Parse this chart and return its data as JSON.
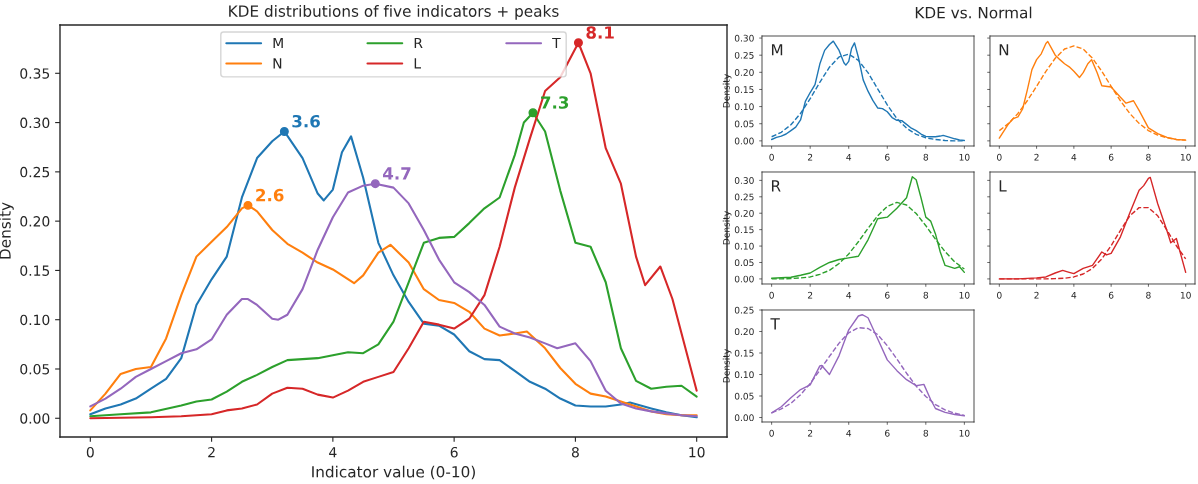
{
  "chart_data": [
    {
      "type": "line",
      "title": "KDE distributions of five indicators + peaks",
      "xlabel": "Indicator value (0-10)",
      "ylabel": "Density",
      "xlim": [
        -0.5,
        10.5
      ],
      "ylim": [
        -0.019,
        0.399
      ],
      "xticks": [
        0,
        2,
        4,
        6,
        8,
        10
      ],
      "yticks": [
        {
          "value": 0,
          "label": "0.00"
        },
        0.05,
        {
          "value": 0.1,
          "label": "0.10"
        },
        0.15,
        {
          "value": 0.2,
          "label": "0.20"
        },
        0.25,
        {
          "value": 0.3,
          "label": "0.30"
        },
        0.35
      ],
      "legend": "top",
      "series": [
        {
          "name": "M",
          "color": "#1f77b4",
          "line_style": "solid",
          "x": [
            0,
            0.25,
            0.5,
            0.75,
            1,
            1.25,
            1.5,
            1.75,
            2,
            2.25,
            2.5,
            2.75,
            3,
            3.2,
            3.5,
            3.75,
            3.85,
            4,
            4.15,
            4.3,
            4.5,
            4.75,
            5,
            5.25,
            5.5,
            5.75,
            6,
            6.25,
            6.5,
            6.75,
            7,
            7.25,
            7.5,
            7.75,
            8,
            8.25,
            8.5,
            8.75,
            8.9,
            9.25,
            9.5,
            9.75,
            10
          ],
          "values": [
            0.004,
            0.01,
            0.014,
            0.02,
            0.03,
            0.04,
            0.061,
            0.115,
            0.141,
            0.164,
            0.224,
            0.264,
            0.281,
            0.291,
            0.264,
            0.228,
            0.221,
            0.232,
            0.27,
            0.286,
            0.244,
            0.178,
            0.145,
            0.118,
            0.096,
            0.094,
            0.085,
            0.068,
            0.06,
            0.059,
            0.048,
            0.037,
            0.03,
            0.02,
            0.013,
            0.012,
            0.012,
            0.014,
            0.016,
            0.01,
            0.006,
            0.003,
            0.001
          ]
        },
        {
          "name": "N",
          "color": "#ff7f0e",
          "line_style": "solid",
          "x": [
            0,
            0.25,
            0.5,
            0.75,
            1,
            1.25,
            1.5,
            1.75,
            2,
            2.25,
            2.5,
            2.6,
            2.75,
            3,
            3.25,
            3.5,
            3.75,
            4,
            4.35,
            4.5,
            4.75,
            4.95,
            5.25,
            5.5,
            5.75,
            6,
            6.25,
            6.5,
            6.75,
            7,
            7.2,
            7.5,
            7.75,
            8,
            8.25,
            8.5,
            8.75,
            9,
            9.25,
            9.5,
            9.75,
            10
          ],
          "values": [
            0.008,
            0.025,
            0.045,
            0.05,
            0.052,
            0.081,
            0.125,
            0.164,
            0.179,
            0.194,
            0.213,
            0.216,
            0.21,
            0.191,
            0.177,
            0.168,
            0.158,
            0.151,
            0.137,
            0.145,
            0.168,
            0.176,
            0.158,
            0.131,
            0.12,
            0.117,
            0.108,
            0.091,
            0.084,
            0.086,
            0.088,
            0.071,
            0.051,
            0.035,
            0.025,
            0.022,
            0.017,
            0.012,
            0.007,
            0.004,
            0.003,
            0.003
          ]
        },
        {
          "name": "R",
          "color": "#2ca02c",
          "line_style": "solid",
          "x": [
            0,
            0.5,
            1,
            1.5,
            1.75,
            2,
            2.25,
            2.5,
            2.75,
            3,
            3.25,
            3.5,
            3.75,
            4,
            4.25,
            4.5,
            4.75,
            5,
            5.25,
            5.5,
            5.75,
            6,
            6.25,
            6.5,
            6.75,
            7,
            7.15,
            7.3,
            7.5,
            7.75,
            8,
            8.25,
            8.5,
            8.75,
            9,
            9.25,
            9.5,
            9.75,
            10
          ],
          "values": [
            0.002,
            0.004,
            0.006,
            0.013,
            0.017,
            0.019,
            0.027,
            0.037,
            0.044,
            0.052,
            0.059,
            0.06,
            0.061,
            0.064,
            0.067,
            0.066,
            0.075,
            0.098,
            0.138,
            0.178,
            0.183,
            0.184,
            0.198,
            0.213,
            0.224,
            0.267,
            0.3,
            0.31,
            0.291,
            0.231,
            0.178,
            0.174,
            0.138,
            0.071,
            0.038,
            0.03,
            0.032,
            0.033,
            0.022
          ]
        },
        {
          "name": "L",
          "color": "#d62728",
          "line_style": "solid",
          "x": [
            0,
            1,
            1.5,
            2,
            2.25,
            2.5,
            2.75,
            3,
            3.25,
            3.5,
            3.75,
            4,
            4.25,
            4.5,
            4.75,
            5,
            5.25,
            5.5,
            5.75,
            6,
            6.25,
            6.5,
            6.75,
            7,
            7.25,
            7.5,
            7.75,
            8.05,
            8.25,
            8.5,
            8.75,
            9,
            9.15,
            9.4,
            9.6,
            10
          ],
          "values": [
            0.0,
            0.001,
            0.002,
            0.004,
            0.008,
            0.01,
            0.014,
            0.025,
            0.031,
            0.03,
            0.024,
            0.021,
            0.028,
            0.037,
            0.042,
            0.047,
            0.071,
            0.098,
            0.095,
            0.091,
            0.101,
            0.125,
            0.174,
            0.234,
            0.284,
            0.332,
            0.346,
            0.381,
            0.35,
            0.274,
            0.238,
            0.164,
            0.135,
            0.154,
            0.121,
            0.028
          ]
        },
        {
          "name": "T",
          "color": "#9467bd",
          "line_style": "solid",
          "x": [
            0,
            0.25,
            0.5,
            0.75,
            1,
            1.25,
            1.5,
            1.75,
            2,
            2.25,
            2.5,
            2.6,
            2.75,
            3,
            3.1,
            3.25,
            3.5,
            3.75,
            4,
            4.25,
            4.5,
            4.7,
            5,
            5.25,
            5.5,
            5.75,
            6,
            6.25,
            6.5,
            6.75,
            7,
            7.25,
            7.5,
            7.7,
            8,
            8.25,
            8.5,
            8.75,
            9,
            9.25,
            9.5,
            9.75,
            10
          ],
          "values": [
            0.012,
            0.02,
            0.03,
            0.042,
            0.05,
            0.058,
            0.066,
            0.07,
            0.08,
            0.105,
            0.121,
            0.121,
            0.115,
            0.101,
            0.1,
            0.105,
            0.131,
            0.171,
            0.204,
            0.229,
            0.236,
            0.238,
            0.234,
            0.218,
            0.191,
            0.161,
            0.138,
            0.128,
            0.115,
            0.093,
            0.086,
            0.082,
            0.076,
            0.071,
            0.076,
            0.058,
            0.028,
            0.015,
            0.01,
            0.007,
            0.005,
            0.003,
            0.002
          ]
        }
      ],
      "annotations": [
        {
          "text": "3.6",
          "x": 3.2,
          "y": 0.291
        },
        {
          "text": "2.6",
          "x": 2.6,
          "y": 0.216
        },
        {
          "text": "7.3",
          "x": 7.3,
          "y": 0.31
        },
        {
          "text": "8.1",
          "x": 8.05,
          "y": 0.381
        },
        {
          "text": "4.7",
          "x": 4.7,
          "y": 0.238
        }
      ]
    },
    {
      "type": "line",
      "title": "KDE vs. Normal",
      "ylabel": "Density",
      "xlim": [
        -0.5,
        10.5
      ],
      "ylim": [
        -0.015,
        0.306
      ],
      "xticks": [
        0,
        2,
        4,
        6,
        8,
        10
      ],
      "yticks": [
        {
          "value": 0,
          "label": "0.00"
        },
        0.05,
        {
          "value": 0.1,
          "label": "0.10"
        },
        0.15,
        {
          "value": 0.2,
          "label": "0.20"
        },
        0.25,
        {
          "value": 0.3,
          "label": "0.30"
        }
      ],
      "annotations": [
        "M"
      ],
      "series": [
        {
          "color": "#1f77b4",
          "line_style": "solid",
          "x": [
            0,
            0.25,
            0.5,
            0.75,
            1,
            1.25,
            1.5,
            1.75,
            2,
            2.25,
            2.5,
            2.75,
            3,
            3.2,
            3.5,
            3.75,
            3.85,
            4,
            4.15,
            4.3,
            4.5,
            4.75,
            5,
            5.25,
            5.5,
            5.75,
            6,
            6.25,
            6.5,
            6.75,
            7,
            7.25,
            7.5,
            7.75,
            8,
            8.25,
            8.5,
            8.75,
            8.9,
            9.25,
            9.5,
            9.75,
            10
          ],
          "values": [
            0.004,
            0.01,
            0.014,
            0.02,
            0.03,
            0.04,
            0.061,
            0.115,
            0.141,
            0.164,
            0.224,
            0.264,
            0.281,
            0.291,
            0.264,
            0.228,
            0.221,
            0.232,
            0.27,
            0.286,
            0.244,
            0.178,
            0.145,
            0.118,
            0.096,
            0.094,
            0.085,
            0.068,
            0.06,
            0.059,
            0.048,
            0.037,
            0.03,
            0.02,
            0.013,
            0.012,
            0.012,
            0.014,
            0.016,
            0.01,
            0.006,
            0.003,
            0.001
          ]
        },
        {
          "color": "#1f77b4",
          "line_style": "dashed",
          "x": [
            0,
            0.5,
            1,
            1.5,
            2,
            2.5,
            3,
            3.5,
            4,
            4.5,
            5,
            5.5,
            6,
            6.5,
            7,
            7.5,
            8,
            8.5,
            9,
            9.5,
            10
          ],
          "values": [
            0.012,
            0.025,
            0.047,
            0.08,
            0.123,
            0.171,
            0.215,
            0.245,
            0.253,
            0.235,
            0.199,
            0.152,
            0.105,
            0.065,
            0.037,
            0.019,
            0.009,
            0.004,
            0.001,
            0.0,
            0.0
          ]
        }
      ]
    },
    {
      "type": "line",
      "xlim": [
        -0.5,
        10.5
      ],
      "ylim": [
        -0.015,
        0.306
      ],
      "xticks": [
        0,
        2,
        4,
        6,
        8,
        10
      ],
      "yticks": [
        0.0,
        0.05,
        0.1,
        0.15,
        0.2,
        0.25,
        0.3
      ],
      "tick_labels": "x",
      "annotations": [
        "N"
      ],
      "series": [
        {
          "color": "#ff7f0e",
          "line_style": "solid",
          "x": [
            0,
            0.5,
            0.75,
            1,
            1.25,
            1.5,
            1.75,
            2,
            2.25,
            2.5,
            2.6,
            2.75,
            3,
            3.25,
            3.5,
            3.75,
            4,
            4.3,
            4.5,
            4.75,
            4.95,
            5.25,
            5.5,
            6,
            6.5,
            6.8,
            7.2,
            7.5,
            8,
            8.5,
            9,
            9.5,
            10
          ],
          "values": [
            0.008,
            0.05,
            0.065,
            0.07,
            0.093,
            0.148,
            0.208,
            0.237,
            0.254,
            0.284,
            0.29,
            0.275,
            0.25,
            0.237,
            0.225,
            0.216,
            0.203,
            0.185,
            0.199,
            0.225,
            0.237,
            0.199,
            0.161,
            0.157,
            0.127,
            0.11,
            0.117,
            0.089,
            0.038,
            0.021,
            0.01,
            0.004,
            0.002
          ]
        },
        {
          "color": "#ff7f0e",
          "line_style": "dashed",
          "x": [
            0,
            0.5,
            1,
            1.5,
            2,
            2.5,
            3,
            3.5,
            4,
            4.5,
            5,
            5.5,
            6,
            6.5,
            7,
            7.5,
            8,
            8.5,
            9,
            9.5,
            10
          ],
          "values": [
            0.03,
            0.051,
            0.08,
            0.117,
            0.159,
            0.203,
            0.241,
            0.268,
            0.277,
            0.268,
            0.241,
            0.203,
            0.159,
            0.117,
            0.08,
            0.051,
            0.03,
            0.017,
            0.009,
            0.004,
            0.002
          ]
        }
      ]
    },
    {
      "type": "line",
      "ylabel": "Density",
      "xlim": [
        -0.5,
        10.5
      ],
      "ylim": [
        -0.0155,
        0.3255
      ],
      "xticks": [
        0,
        2,
        4,
        6,
        8,
        10
      ],
      "yticks": [
        {
          "value": 0,
          "label": "0.00"
        },
        0.05,
        {
          "value": 0.1,
          "label": "0.10"
        },
        0.15,
        {
          "value": 0.2,
          "label": "0.20"
        },
        0.25,
        {
          "value": 0.3,
          "label": "0.30"
        }
      ],
      "annotations": [
        "R"
      ],
      "series": [
        {
          "color": "#2ca02c",
          "line_style": "solid",
          "x": [
            0,
            1,
            1.5,
            2,
            2.5,
            3,
            3.5,
            4,
            4.5,
            5,
            5.5,
            6,
            6.5,
            7,
            7.3,
            7.5,
            7.75,
            8,
            8.25,
            8.5,
            8.75,
            9,
            9.5,
            9.75,
            10
          ],
          "values": [
            0.002,
            0.005,
            0.011,
            0.018,
            0.035,
            0.05,
            0.059,
            0.064,
            0.069,
            0.119,
            0.183,
            0.188,
            0.215,
            0.247,
            0.311,
            0.302,
            0.247,
            0.188,
            0.176,
            0.137,
            0.082,
            0.041,
            0.032,
            0.037,
            0.02
          ]
        },
        {
          "color": "#2ca02c",
          "line_style": "dashed",
          "x": [
            0,
            0.5,
            1,
            1.5,
            2,
            2.5,
            3,
            3.5,
            4,
            4.5,
            5,
            5.5,
            6,
            6.5,
            7,
            7.5,
            8,
            8.5,
            9,
            9.5,
            10
          ],
          "values": [
            0.0,
            0.0,
            0.001,
            0.003,
            0.006,
            0.014,
            0.026,
            0.047,
            0.076,
            0.113,
            0.154,
            0.192,
            0.221,
            0.233,
            0.225,
            0.199,
            0.162,
            0.121,
            0.083,
            0.052,
            0.03
          ]
        }
      ]
    },
    {
      "type": "line",
      "xlim": [
        -0.5,
        10.5
      ],
      "ylim": [
        -0.0155,
        0.3255
      ],
      "xticks": [
        0,
        2,
        4,
        6,
        8,
        10
      ],
      "yticks": [
        0.0,
        0.05,
        0.1,
        0.15,
        0.2,
        0.25,
        0.3
      ],
      "tick_labels": "x",
      "annotations": [
        "L"
      ],
      "series": [
        {
          "color": "#d62728",
          "line_style": "solid",
          "x": [
            0,
            1,
            2,
            2.5,
            3,
            3.4,
            3.75,
            4,
            4.5,
            5,
            5.5,
            5.75,
            6,
            6.5,
            7,
            7.5,
            7.75,
            8,
            8.1,
            8.5,
            9,
            9.2,
            9.5,
            10
          ],
          "values": [
            0.0,
            0.0,
            0.003,
            0.006,
            0.018,
            0.026,
            0.02,
            0.016,
            0.032,
            0.041,
            0.082,
            0.073,
            0.078,
            0.128,
            0.201,
            0.27,
            0.284,
            0.306,
            0.309,
            0.229,
            0.146,
            0.11,
            0.123,
            0.02
          ]
        },
        {
          "color": "#d62728",
          "line_style": "dashed",
          "x": [
            0,
            0.5,
            1,
            1.5,
            2,
            2.5,
            3,
            3.5,
            4,
            4.5,
            5,
            5.5,
            6,
            6.5,
            7,
            7.5,
            8,
            8.5,
            9,
            9.5,
            10
          ],
          "values": [
            0.0,
            0.0,
            0.0,
            0.0,
            0.0,
            0.0,
            0.001,
            0.002,
            0.006,
            0.015,
            0.032,
            0.061,
            0.101,
            0.148,
            0.192,
            0.217,
            0.217,
            0.192,
            0.148,
            0.101,
            0.061
          ]
        }
      ]
    },
    {
      "type": "line",
      "ylabel": "Density",
      "xlim": [
        -0.5,
        10.5
      ],
      "ylim": [
        -0.0104,
        0.25
      ],
      "xticks": [
        0,
        2,
        4,
        6,
        8,
        10
      ],
      "yticks": [
        {
          "value": 0,
          "label": "0.00"
        },
        0.05,
        {
          "value": 0.1,
          "label": "0.10"
        },
        0.15,
        {
          "value": 0.2,
          "label": "0.20"
        },
        0.25
      ],
      "annotations": [
        "T"
      ],
      "series": [
        {
          "color": "#9467bd",
          "line_style": "solid",
          "x": [
            0,
            0.5,
            1,
            1.5,
            2,
            2.5,
            2.6,
            3,
            3.5,
            4,
            4.5,
            4.7,
            5,
            5.5,
            6,
            6.5,
            7,
            7.5,
            7.9,
            8.25,
            8.5,
            9,
            9.5,
            10
          ],
          "values": [
            0.011,
            0.025,
            0.046,
            0.065,
            0.076,
            0.12,
            0.121,
            0.1,
            0.144,
            0.204,
            0.236,
            0.239,
            0.232,
            0.183,
            0.134,
            0.109,
            0.088,
            0.074,
            0.077,
            0.042,
            0.021,
            0.012,
            0.007,
            0.004
          ]
        },
        {
          "color": "#9467bd",
          "line_style": "dashed",
          "x": [
            0,
            0.5,
            1,
            1.5,
            2,
            2.5,
            3,
            3.5,
            4,
            4.5,
            5,
            5.5,
            6,
            6.5,
            7,
            7.5,
            8,
            8.5,
            9,
            9.5,
            10
          ],
          "values": [
            0.011,
            0.02,
            0.033,
            0.053,
            0.079,
            0.11,
            0.142,
            0.173,
            0.197,
            0.209,
            0.207,
            0.193,
            0.167,
            0.136,
            0.103,
            0.073,
            0.049,
            0.03,
            0.018,
            0.01,
            0.005
          ]
        }
      ]
    }
  ]
}
